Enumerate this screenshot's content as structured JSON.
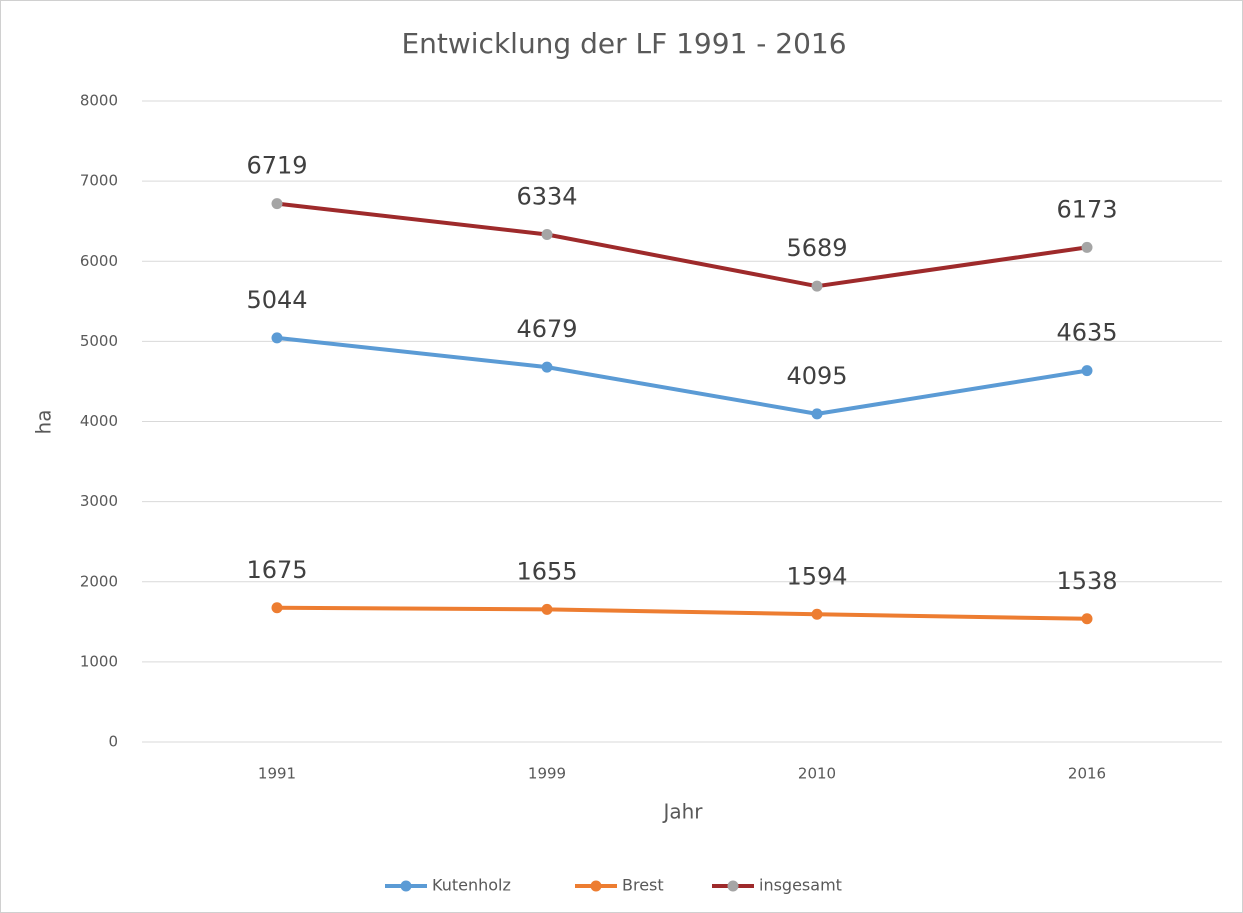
{
  "chart_data": {
    "type": "line",
    "title": "Entwicklung der LF 1991 - 2016",
    "x_label": "Jahr",
    "y_label": "ha",
    "categories": [
      "1991",
      "1999",
      "2010",
      "2016"
    ],
    "series": [
      {
        "name": "Kutenholz",
        "color": "#5b9bd5",
        "marker_color": "#5b9bd5",
        "values": [
          5044,
          4679,
          4095,
          4635
        ]
      },
      {
        "name": "Brest",
        "color": "#ed7d31",
        "marker_color": "#ed7d31",
        "values": [
          1675,
          1655,
          1594,
          1538
        ]
      },
      {
        "name": "insgesamt",
        "color": "#9e2a2b",
        "marker_color": "#a5a5a5",
        "values": [
          6719,
          6334,
          5689,
          6173
        ]
      }
    ],
    "ylim": [
      0,
      8000
    ],
    "yticks": [
      0,
      1000,
      2000,
      3000,
      4000,
      5000,
      6000,
      7000,
      8000
    ],
    "grid": true,
    "legend": "bottom"
  }
}
